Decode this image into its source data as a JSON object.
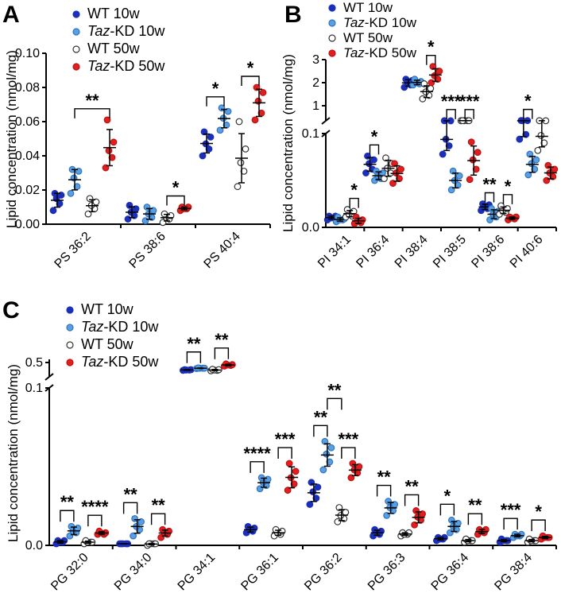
{
  "series_styles": [
    {
      "name_prefix": "WT",
      "name_italic": "",
      "name_suffix": " 10w",
      "fill": "#1b2fb8",
      "stroke": "#1b2fb8"
    },
    {
      "name_prefix": "",
      "name_italic": "Taz",
      "name_suffix": "-KD 10w",
      "fill": "#5aa0e0",
      "stroke": "#2f73c4"
    },
    {
      "name_prefix": "WT",
      "name_italic": "",
      "name_suffix": " 50w",
      "fill": "#ffffff",
      "stroke": "#333333"
    },
    {
      "name_prefix": "",
      "name_italic": "Taz",
      "name_suffix": "-KD 50w",
      "fill": "#e02020",
      "stroke": "#c01010"
    }
  ],
  "chart_data": [
    {
      "panel": "A",
      "type": "scatter",
      "ylabel": "Lipid concentration (nmol/mg)",
      "ylim": [
        0,
        0.1
      ],
      "yticks": [
        "0.00",
        "0.02",
        "0.04",
        "0.06",
        "0.08",
        "0.10"
      ],
      "categories": [
        "PS 36:2",
        "PS 38:6",
        "PS 40:4"
      ],
      "series": [
        {
          "name": "WT 10w",
          "values": [
            0.014,
            0.007,
            0.047
          ]
        },
        {
          "name": "Taz-KD 10w",
          "values": [
            0.026,
            0.006,
            0.062
          ]
        },
        {
          "name": "WT 50w",
          "values": [
            0.011,
            0.004,
            0.04
          ]
        },
        {
          "name": "Taz-KD 50w",
          "values": [
            0.043,
            0.009,
            0.072
          ]
        }
      ],
      "points": [
        [
          [
            0.008,
            0.012,
            0.015,
            0.017,
            0.018
          ],
          [
            0.018,
            0.022,
            0.027,
            0.031,
            0.032
          ],
          [
            0.006,
            0.009,
            0.011,
            0.013,
            0.015
          ],
          [
            0.033,
            0.039,
            0.043,
            0.048,
            0.061
          ]
        ],
        [
          [
            0.003,
            0.005,
            0.007,
            0.009,
            0.011
          ],
          [
            0.002,
            0.004,
            0.006,
            0.008,
            0.01
          ],
          [
            0.001,
            0.003,
            0.004,
            0.005,
            0.006
          ],
          [
            0.008,
            0.009,
            0.009,
            0.01,
            0.01
          ]
        ],
        [
          [
            0.04,
            0.044,
            0.047,
            0.051,
            0.054
          ],
          [
            0.055,
            0.058,
            0.062,
            0.066,
            0.068
          ],
          [
            0.022,
            0.031,
            0.036,
            0.044,
            0.06
          ],
          [
            0.061,
            0.065,
            0.072,
            0.077,
            0.08
          ]
        ]
      ],
      "sig": [
        {
          "label": "**",
          "cat": 0,
          "a": 1,
          "b": 3
        },
        {
          "label": "*",
          "cat": 1,
          "a": 2,
          "b": 3
        },
        {
          "label": "*",
          "cat": 2,
          "a": 0,
          "b": 1
        },
        {
          "label": "*",
          "cat": 2,
          "a": 2,
          "b": 3
        }
      ]
    },
    {
      "panel": "B",
      "type": "scatter",
      "ylabel": "Lipid concentration (nmol/mg)",
      "axis_break": true,
      "lower_ylim": [
        0,
        0.1
      ],
      "upper_ylim": [
        1,
        3
      ],
      "yticks": [
        "0.0",
        "0.1",
        "1",
        "2",
        "3"
      ],
      "categories": [
        "PI 34:1",
        "PI 36:4",
        "PI 38:4",
        "PI 38:5",
        "PI 38:6",
        "PI 40:6"
      ],
      "series": [
        {
          "name": "WT 10w",
          "values": [
            0.01,
            0.068,
            2.0,
            0.094,
            0.022,
            0.109
          ]
        },
        {
          "name": "Taz-KD 10w",
          "values": [
            0.009,
            0.055,
            2.0,
            0.05,
            0.015,
            0.067
          ]
        },
        {
          "name": "WT 50w",
          "values": [
            0.015,
            0.064,
            1.6,
            0.109,
            0.018,
            0.098
          ]
        },
        {
          "name": "Taz-KD 50w",
          "values": [
            0.007,
            0.058,
            2.3,
            0.071,
            0.01,
            0.058
          ]
        }
      ],
      "points": [
        [
          [
            0.008,
            0.01,
            0.01,
            0.012,
            0.012
          ],
          [
            0.006,
            0.008,
            0.008,
            0.009,
            0.011
          ],
          [
            0.011,
            0.012,
            0.014,
            0.017,
            0.019
          ],
          [
            0.004,
            0.005,
            0.007,
            0.008,
            0.011
          ]
        ],
        [
          [
            0.058,
            0.062,
            0.068,
            0.072,
            0.076
          ],
          [
            0.05,
            0.052,
            0.055,
            0.058,
            0.06
          ],
          [
            0.052,
            0.058,
            0.063,
            0.068,
            0.074
          ],
          [
            0.047,
            0.052,
            0.058,
            0.062,
            0.068
          ]
        ],
        [
          [
            1.8,
            1.9,
            2.0,
            2.1,
            2.15
          ],
          [
            1.9,
            1.95,
            2.0,
            2.05,
            2.15
          ],
          [
            1.3,
            1.45,
            1.6,
            1.75,
            1.95
          ],
          [
            2.0,
            2.15,
            2.3,
            2.5,
            2.7
          ]
        ],
        [
          [
            0.078,
            0.087,
            0.094,
            0.102,
            0.108
          ],
          [
            0.04,
            0.045,
            0.05,
            0.055,
            0.06
          ],
          [
            0.108,
            0.109,
            0.11,
            0.11,
            0.111
          ],
          [
            0.051,
            0.062,
            0.072,
            0.08,
            0.091
          ]
        ],
        [
          [
            0.018,
            0.02,
            0.022,
            0.024,
            0.025
          ],
          [
            0.008,
            0.011,
            0.014,
            0.017,
            0.02
          ],
          [
            0.014,
            0.016,
            0.018,
            0.02,
            0.023
          ],
          [
            0.008,
            0.009,
            0.01,
            0.011,
            0.011
          ]
        ],
        [
          [
            0.094,
            0.099,
            0.109,
            0.115,
            0.118
          ],
          [
            0.056,
            0.062,
            0.068,
            0.072,
            0.078
          ],
          [
            0.082,
            0.09,
            0.098,
            0.105,
            0.11
          ],
          [
            0.05,
            0.054,
            0.058,
            0.062,
            0.066
          ]
        ]
      ],
      "sig": [
        {
          "label": "*",
          "cat": 0,
          "a": 2,
          "b": 3
        },
        {
          "label": "*",
          "cat": 1,
          "a": 0,
          "b": 1
        },
        {
          "label": "*",
          "cat": 2,
          "a": 2,
          "b": 3
        },
        {
          "label": "***",
          "cat": 3,
          "a": 0,
          "b": 1
        },
        {
          "label": "***",
          "cat": 3,
          "a": 2,
          "b": 3
        },
        {
          "label": "**",
          "cat": 4,
          "a": 0,
          "b": 1
        },
        {
          "label": "*",
          "cat": 4,
          "a": 2,
          "b": 3
        },
        {
          "label": "*",
          "cat": 5,
          "a": 0,
          "b": 1
        }
      ]
    },
    {
      "panel": "C",
      "type": "scatter",
      "ylabel": "Lipid concentration (nmol/mg)",
      "axis_break": true,
      "lower_ylim": [
        0,
        0.1
      ],
      "upper_ylim": [
        0.1,
        0.5
      ],
      "yticks": [
        "0.0",
        "0.1",
        "0.5"
      ],
      "categories": [
        "PG 32:0",
        "PG 34:0",
        "PG 34:1",
        "PG 36:1",
        "PG 36:2",
        "PG 36:3",
        "PG 36:4",
        "PG 38:4"
      ],
      "series": [
        {
          "name": "WT 10w",
          "values": [
            0.002,
            0.001,
            0.29,
            0.01,
            0.034,
            0.008,
            0.004,
            0.003
          ]
        },
        {
          "name": "Taz-KD 10w",
          "values": [
            0.009,
            0.012,
            0.34,
            0.04,
            0.058,
            0.024,
            0.012,
            0.006
          ]
        },
        {
          "name": "WT 50w",
          "values": [
            0.002,
            0.001,
            0.29,
            0.008,
            0.019,
            0.007,
            0.003,
            0.003
          ]
        },
        {
          "name": "Taz-KD 50w",
          "values": [
            0.008,
            0.008,
            0.43,
            0.043,
            0.048,
            0.018,
            0.009,
            0.005
          ]
        }
      ],
      "points": [
        [
          [
            0.001,
            0.002,
            0.002,
            0.003,
            0.003
          ],
          [
            0.001,
            0.001,
            0.001,
            0.001,
            0.001
          ],
          [
            null,
            null,
            null,
            null,
            null
          ],
          [
            0.008,
            0.009,
            0.01,
            0.011,
            0.012
          ],
          [
            0.026,
            0.03,
            0.034,
            0.037,
            0.04
          ]
        ],
        [
          [
            0.006,
            0.008,
            0.009,
            0.011,
            0.012
          ],
          [
            0.006,
            0.01,
            0.012,
            0.015,
            0.017
          ],
          [
            null,
            null,
            null,
            null,
            null
          ],
          [
            0.036,
            0.038,
            0.04,
            0.042,
            0.043
          ],
          [
            0.048,
            0.053,
            0.058,
            0.062,
            0.066
          ]
        ],
        [
          [
            0.001,
            0.002,
            0.002,
            0.002,
            0.003
          ],
          [
            0.0,
            0.001,
            0.001,
            0.001,
            0.001
          ],
          [
            null,
            null,
            null,
            null,
            null
          ],
          [
            0.006,
            0.007,
            0.008,
            0.009,
            0.01
          ],
          [
            0.015,
            0.017,
            0.019,
            0.021,
            0.024
          ]
        ],
        [
          [
            0.007,
            0.007,
            0.008,
            0.008,
            0.009
          ],
          [
            0.005,
            0.007,
            0.008,
            0.009,
            0.01
          ],
          [
            null,
            null,
            null,
            null,
            null
          ],
          [
            0.035,
            0.039,
            0.043,
            0.047,
            0.052
          ],
          [
            0.043,
            0.046,
            0.048,
            0.05,
            0.052
          ]
        ]
      ],
      "points_upper_PG34_1": [
        [
          0.28,
          0.29,
          0.29,
          0.3,
          0.3
        ],
        [
          0.33,
          0.34,
          0.34,
          0.34,
          0.35
        ],
        [
          0.27,
          0.28,
          0.29,
          0.3,
          0.31
        ],
        [
          0.4,
          0.42,
          0.43,
          0.44,
          0.46
        ]
      ],
      "points_rest": [
        [
          [
            0.006,
            0.007,
            0.008,
            0.009,
            0.01
          ],
          [
            0.003,
            0.004,
            0.004,
            0.005,
            0.005
          ],
          [
            0.002,
            0.003,
            0.003,
            0.003,
            0.004
          ]
        ],
        [
          [
            0.019,
            0.022,
            0.024,
            0.026,
            0.028
          ],
          [
            0.008,
            0.01,
            0.012,
            0.014,
            0.016
          ],
          [
            0.005,
            0.006,
            0.006,
            0.007,
            0.007
          ]
        ],
        [
          [
            0.006,
            0.007,
            0.007,
            0.008,
            0.008
          ],
          [
            0.002,
            0.003,
            0.003,
            0.003,
            0.004
          ],
          [
            0.002,
            0.003,
            0.003,
            0.003,
            0.004
          ]
        ],
        [
          [
            0.013,
            0.016,
            0.018,
            0.02,
            0.022
          ],
          [
            0.007,
            0.008,
            0.009,
            0.01,
            0.01
          ],
          [
            0.004,
            0.005,
            0.005,
            0.005,
            0.006
          ]
        ]
      ],
      "sig": [
        {
          "label": "**",
          "cat": 0,
          "a": 0,
          "b": 1
        },
        {
          "label": "****",
          "cat": 0,
          "a": 2,
          "b": 3
        },
        {
          "label": "**",
          "cat": 1,
          "a": 0,
          "b": 1
        },
        {
          "label": "**",
          "cat": 1,
          "a": 2,
          "b": 3
        },
        {
          "label": "**",
          "cat": 2,
          "a": 0,
          "b": 1
        },
        {
          "label": "**",
          "cat": 2,
          "a": 2,
          "b": 3
        },
        {
          "label": "****",
          "cat": 3,
          "a": 0,
          "b": 1
        },
        {
          "label": "***",
          "cat": 3,
          "a": 2,
          "b": 3
        },
        {
          "label": "**",
          "cat": 4,
          "a": 0,
          "b": 1
        },
        {
          "label": "**",
          "cat": 4,
          "a": 1,
          "b": 2
        },
        {
          "label": "***",
          "cat": 4,
          "a": 2,
          "b": 3
        },
        {
          "label": "**",
          "cat": 5,
          "a": 0,
          "b": 1
        },
        {
          "label": "**",
          "cat": 5,
          "a": 2,
          "b": 3
        },
        {
          "label": "*",
          "cat": 6,
          "a": 0,
          "b": 1
        },
        {
          "label": "**",
          "cat": 6,
          "a": 2,
          "b": 3
        },
        {
          "label": "***",
          "cat": 7,
          "a": 0,
          "b": 1
        },
        {
          "label": "*",
          "cat": 7,
          "a": 2,
          "b": 3
        }
      ]
    }
  ]
}
